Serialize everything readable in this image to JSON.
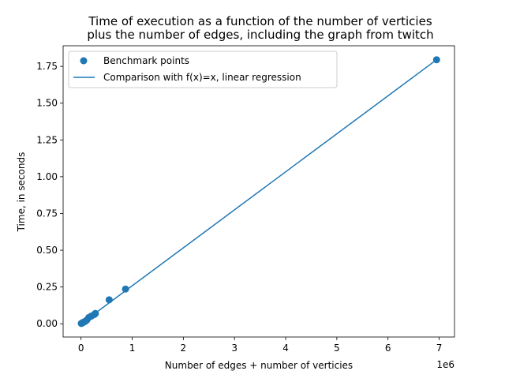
{
  "chart_data": {
    "type": "scatter",
    "title_lines": [
      "Time of execution as a function of the number of verticies",
      "plus the number of edges, including the graph from twitch"
    ],
    "xlabel": "Number of edges + number of verticies",
    "ylabel": "Time, in seconds",
    "x_offset_text": "1e6",
    "x_scale_factor": 1000000,
    "xlim": [
      -350000,
      7300000
    ],
    "ylim": [
      -0.09,
      1.89
    ],
    "x_ticks": [
      0,
      1000000,
      2000000,
      3000000,
      4000000,
      5000000,
      6000000,
      7000000
    ],
    "x_tick_labels": [
      "0",
      "1",
      "2",
      "3",
      "4",
      "5",
      "6",
      "7"
    ],
    "y_ticks": [
      0.0,
      0.25,
      0.5,
      0.75,
      1.0,
      1.25,
      1.5,
      1.75
    ],
    "y_tick_labels": [
      "0.00",
      "0.25",
      "0.50",
      "0.75",
      "1.00",
      "1.25",
      "1.50",
      "1.75"
    ],
    "grid": false,
    "legend_position": "top-left",
    "series": [
      {
        "name": "Benchmark points",
        "kind": "scatter",
        "color": "#1f77b4",
        "points": [
          [
            5000,
            0.002
          ],
          [
            15000,
            0.004
          ],
          [
            30000,
            0.007
          ],
          [
            50000,
            0.011
          ],
          [
            80000,
            0.016
          ],
          [
            110000,
            0.024
          ],
          [
            150000,
            0.042
          ],
          [
            200000,
            0.052
          ],
          [
            260000,
            0.063
          ],
          [
            280000,
            0.07
          ],
          [
            550000,
            0.163
          ],
          [
            870000,
            0.236
          ],
          [
            6950000,
            1.795
          ]
        ]
      },
      {
        "name": "Comparison with f(x)=x, linear regression",
        "kind": "line",
        "color": "#1f77b4",
        "points": [
          [
            0,
            0.0
          ],
          [
            6950000,
            1.795
          ]
        ]
      }
    ]
  }
}
